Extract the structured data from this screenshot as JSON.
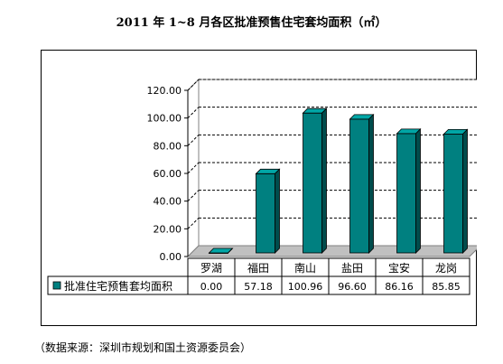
{
  "title": "2011 年 1~8 月各区批准预售住宅套均面积（㎡）",
  "source": "（数据来源：深圳市规划和国土资源委员会）",
  "chart_data": {
    "type": "bar",
    "title": "2011 年 1~8 月各区批准预售住宅套均面积（㎡）",
    "categories": [
      "罗湖",
      "福田",
      "南山",
      "盐田",
      "宝安",
      "龙岗"
    ],
    "series": [
      {
        "name": "批准住宅预售套均面积",
        "values": [
          0.0,
          57.18,
          100.96,
          96.6,
          86.16,
          85.85
        ],
        "value_labels": [
          "0.00",
          "57.18",
          "100.96",
          "96.60",
          "86.16",
          "85.85"
        ]
      }
    ],
    "y_ticks": [
      "0.00",
      "20.00",
      "40.00",
      "60.00",
      "80.00",
      "100.00",
      "120.00"
    ],
    "ylim": [
      0,
      120
    ],
    "grid": true,
    "legend": "data-table",
    "bar_color": "#008080",
    "bar_top_color": "#00a6a6",
    "bar_side_color": "#004c4c"
  }
}
